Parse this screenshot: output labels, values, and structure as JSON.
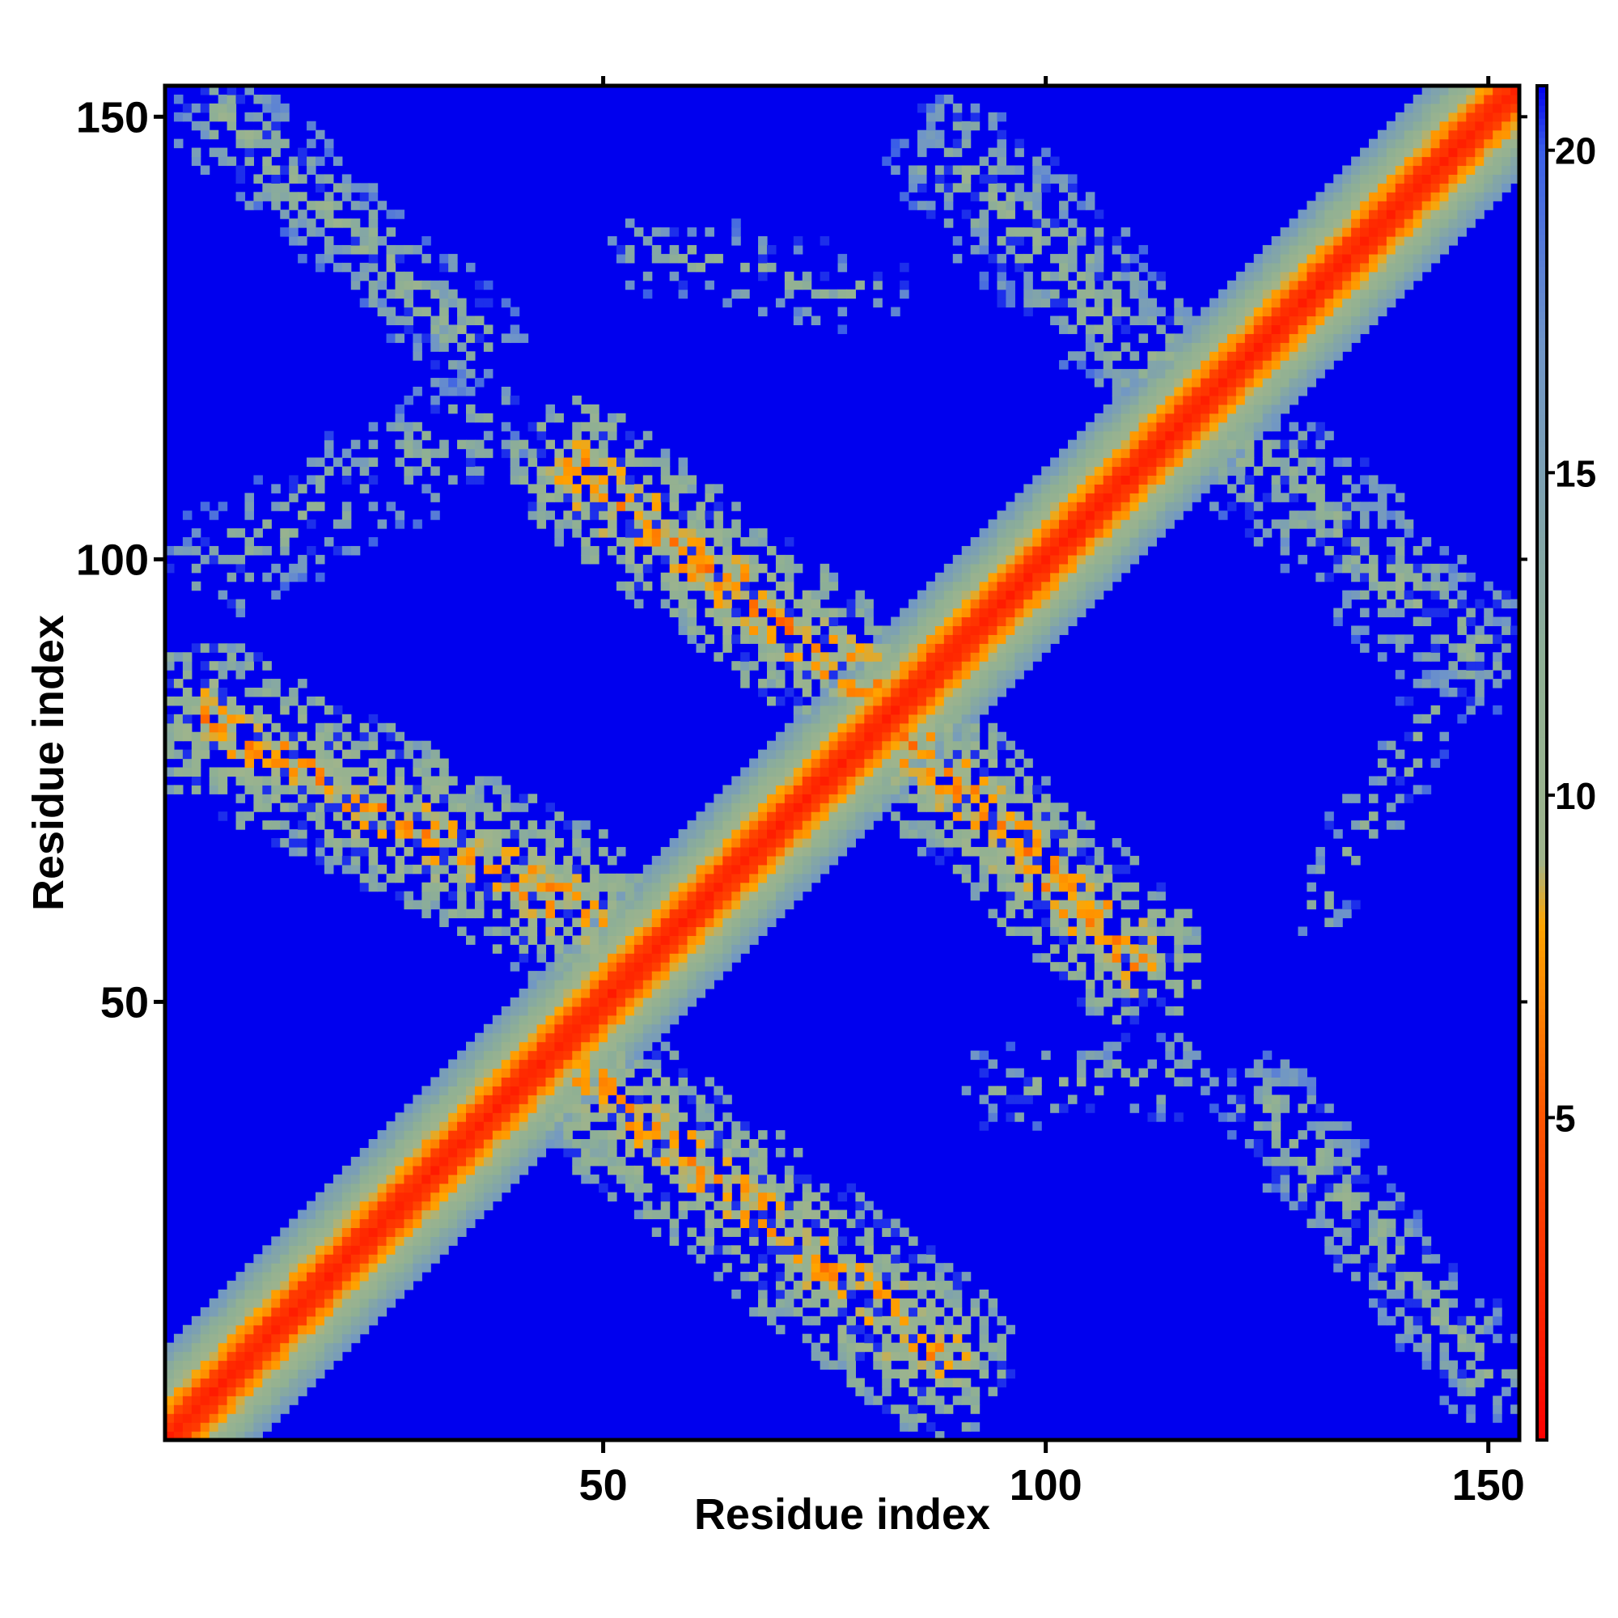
{
  "chart_data": {
    "type": "heatmap",
    "title": "",
    "xlabel": "Residue index",
    "ylabel": "Residue index",
    "xlim": [
      1,
      153
    ],
    "ylim": [
      1,
      153
    ],
    "x_ticks": [
      50,
      100,
      150
    ],
    "y_ticks": [
      50,
      100,
      150
    ],
    "colorbar": {
      "ticks": [
        5,
        10,
        15,
        20
      ],
      "range": [
        0,
        21
      ],
      "placement": "right",
      "stops": [
        {
          "value": 0,
          "color": "#ff0000"
        },
        {
          "value": 5,
          "color": "#ff5500"
        },
        {
          "value": 8,
          "color": "#ffa500"
        },
        {
          "value": 9,
          "color": "#9fb48c"
        },
        {
          "value": 12,
          "color": "#8fb094"
        },
        {
          "value": 17,
          "color": "#6f95c8"
        },
        {
          "value": 20,
          "color": "#3a5ee8"
        },
        {
          "value": 21,
          "color": "#0000ee"
        }
      ]
    },
    "background_value": 21,
    "cutoff_value": 12,
    "diagonal": {
      "core_halfwidth": 2.5,
      "band_halfwidth": 10,
      "core_value": 1.5,
      "edge_value": 16
    },
    "structures": [
      {
        "x1": 48,
        "y1": 60,
        "x2": 5,
        "y2": 82,
        "width": 9,
        "value": 7,
        "fill": 0.85
      },
      {
        "x1": 47,
        "y1": 42,
        "x2": 88,
        "y2": 10,
        "width": 9,
        "value": 7,
        "fill": 0.85
      },
      {
        "x1": 82,
        "y1": 84,
        "x2": 47,
        "y2": 110,
        "width": 8,
        "value": 6.5,
        "fill": 0.85
      },
      {
        "x1": 84,
        "y1": 80,
        "x2": 110,
        "y2": 55,
        "width": 8,
        "value": 6.5,
        "fill": 0.85
      },
      {
        "x1": 115,
        "y1": 120,
        "x2": 90,
        "y2": 145,
        "width": 8,
        "value": 10.5,
        "fill": 0.65
      },
      {
        "x1": 120,
        "y1": 115,
        "x2": 148,
        "y2": 90,
        "width": 8,
        "value": 10.5,
        "fill": 0.6
      },
      {
        "x1": 7,
        "y1": 150,
        "x2": 35,
        "y2": 125,
        "width": 6,
        "value": 10.5,
        "fill": 0.6
      },
      {
        "x1": 125,
        "y1": 38,
        "x2": 150,
        "y2": 8,
        "width": 6,
        "value": 10.5,
        "fill": 0.6
      },
      {
        "x1": 7,
        "y1": 100,
        "x2": 35,
        "y2": 115,
        "width": 7,
        "value": 11,
        "fill": 0.4
      },
      {
        "x1": 95,
        "y1": 40,
        "x2": 115,
        "y2": 42,
        "width": 5,
        "value": 11,
        "fill": 0.35
      },
      {
        "x1": 55,
        "y1": 135,
        "x2": 80,
        "y2": 130,
        "width": 5,
        "value": 11,
        "fill": 0.3
      },
      {
        "x1": 130,
        "y1": 60,
        "x2": 145,
        "y2": 85,
        "width": 4,
        "value": 11,
        "fill": 0.3
      }
    ]
  }
}
